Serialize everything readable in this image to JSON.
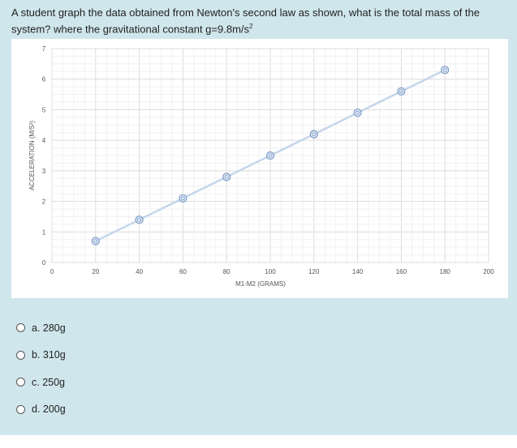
{
  "question": {
    "text": "A student graph the data obtained from Newton's second law as shown, what is the total mass of the system? where the gravitational constant g=9.8m/s",
    "exponent": "2"
  },
  "options": [
    {
      "label": "a. 280g"
    },
    {
      "label": "b. 310g"
    },
    {
      "label": "c. 250g"
    },
    {
      "label": "d. 200g"
    }
  ],
  "colors": {
    "panel": "#cfe6ec",
    "line": "#c5d6ea",
    "marker": "#7d9bc6",
    "grid": "#e3e3e3"
  },
  "chart_data": {
    "type": "scatter",
    "title": "",
    "xlabel": "M1-M2 (GRAMS)",
    "ylabel": "ACCELERATION (M/S²)",
    "xlim": [
      0,
      200
    ],
    "ylim": [
      0,
      7
    ],
    "x_ticks": [
      "0",
      "20",
      "40",
      "60",
      "80",
      "100",
      "120",
      "140",
      "160",
      "180",
      "200"
    ],
    "y_ticks": [
      "0",
      "1",
      "2",
      "3",
      "4",
      "5",
      "6",
      "7"
    ],
    "grid": true,
    "series": [
      {
        "x": [
          20,
          40,
          60,
          80,
          100,
          120,
          140,
          160,
          180
        ],
        "y": [
          0.7,
          1.4,
          2.1,
          2.8,
          3.5,
          4.2,
          4.9,
          5.6,
          6.3
        ]
      }
    ]
  }
}
